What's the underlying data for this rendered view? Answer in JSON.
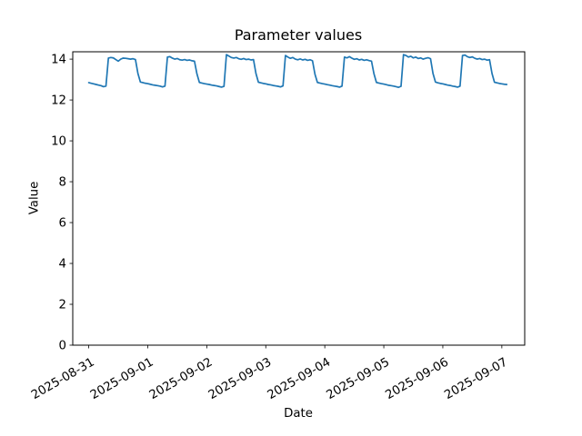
{
  "chart_data": {
    "type": "line",
    "title": "Parameter values",
    "xlabel": "Date",
    "ylabel": "Value",
    "legend": null,
    "grid": false,
    "line_color": "#1f77b4",
    "axis_color": "#000000",
    "x_unit": "hours since 2025-08-31 00:00",
    "x_tick_hours": [
      0,
      24,
      48,
      72,
      96,
      120,
      144,
      168
    ],
    "x_tick_labels": [
      "2025-08-31",
      "2025-09-01",
      "2025-09-02",
      "2025-09-03",
      "2025-09-04",
      "2025-09-05",
      "2025-09-06",
      "2025-09-07"
    ],
    "y_ticks": [
      0,
      2,
      4,
      6,
      8,
      10,
      12,
      14
    ],
    "xlim_hours": [
      -6.5,
      177.3
    ],
    "ylim": [
      0,
      14.36
    ],
    "x_hours": [
      0,
      1,
      2,
      3,
      4,
      5,
      6,
      7,
      8,
      9,
      10,
      11,
      12,
      13,
      14,
      15,
      16,
      17,
      18,
      19,
      20,
      21,
      22,
      23,
      24,
      25,
      26,
      27,
      28,
      29,
      30,
      31,
      32,
      33,
      34,
      35,
      36,
      37,
      38,
      39,
      40,
      41,
      42,
      43,
      44,
      45,
      46,
      47,
      48,
      49,
      50,
      51,
      52,
      53,
      54,
      55,
      56,
      57,
      58,
      59,
      60,
      61,
      62,
      63,
      64,
      65,
      66,
      67,
      68,
      69,
      70,
      71,
      72,
      73,
      74,
      75,
      76,
      77,
      78,
      79,
      80,
      81,
      82,
      83,
      84,
      85,
      86,
      87,
      88,
      89,
      90,
      91,
      92,
      93,
      94,
      95,
      96,
      97,
      98,
      99,
      100,
      101,
      102,
      103,
      104,
      105,
      106,
      107,
      108,
      109,
      110,
      111,
      112,
      113,
      114,
      115,
      116,
      117,
      118,
      119,
      120,
      121,
      122,
      123,
      124,
      125,
      126,
      127,
      128,
      129,
      130,
      131,
      132,
      133,
      134,
      135,
      136,
      137,
      138,
      139,
      140,
      141,
      142,
      143,
      144,
      145,
      146,
      147,
      148,
      149,
      150,
      151,
      152,
      153,
      154,
      155,
      156,
      157,
      158,
      159,
      160,
      161,
      162,
      163,
      164,
      165,
      166,
      167,
      168,
      169,
      170
    ],
    "values": [
      12.85,
      12.82,
      12.79,
      12.76,
      12.73,
      12.7,
      12.65,
      12.68,
      14.05,
      14.08,
      14.06,
      13.98,
      13.9,
      14.0,
      14.05,
      14.04,
      14.02,
      14.0,
      14.02,
      13.98,
      13.3,
      12.88,
      12.85,
      12.82,
      12.8,
      12.77,
      12.74,
      12.72,
      12.7,
      12.68,
      12.64,
      12.68,
      14.1,
      14.12,
      14.05,
      14.0,
      14.03,
      13.97,
      13.95,
      13.98,
      13.94,
      13.96,
      13.92,
      13.9,
      13.28,
      12.86,
      12.83,
      12.8,
      12.78,
      12.76,
      12.73,
      12.71,
      12.69,
      12.66,
      12.63,
      12.67,
      14.22,
      14.15,
      14.08,
      14.05,
      14.08,
      14.02,
      13.99,
      14.03,
      13.98,
      14.0,
      13.96,
      13.98,
      13.3,
      12.87,
      12.84,
      12.81,
      12.79,
      12.76,
      12.74,
      12.71,
      12.69,
      12.67,
      12.64,
      12.69,
      14.18,
      14.1,
      14.04,
      14.08,
      14.0,
      13.97,
      14.01,
      13.96,
      13.99,
      13.94,
      13.97,
      13.92,
      13.26,
      12.86,
      12.83,
      12.8,
      12.78,
      12.75,
      12.73,
      12.7,
      12.68,
      12.66,
      12.63,
      12.68,
      14.1,
      14.06,
      14.12,
      14.05,
      13.99,
      14.02,
      13.96,
      13.99,
      13.94,
      13.97,
      13.93,
      13.9,
      13.28,
      12.86,
      12.83,
      12.8,
      12.78,
      12.75,
      12.72,
      12.7,
      12.68,
      12.65,
      12.62,
      12.67,
      14.22,
      14.18,
      14.1,
      14.14,
      14.06,
      14.1,
      14.03,
      14.06,
      14.0,
      14.04,
      14.07,
      14.02,
      13.3,
      12.88,
      12.84,
      12.81,
      12.79,
      12.76,
      12.73,
      12.71,
      12.68,
      12.66,
      12.63,
      12.68,
      14.18,
      14.2,
      14.12,
      14.08,
      14.11,
      14.04,
      14.0,
      14.03,
      13.98,
      14.0,
      13.95,
      13.97,
      13.3,
      12.87,
      12.84,
      12.81,
      12.79,
      12.77,
      12.76
    ]
  }
}
